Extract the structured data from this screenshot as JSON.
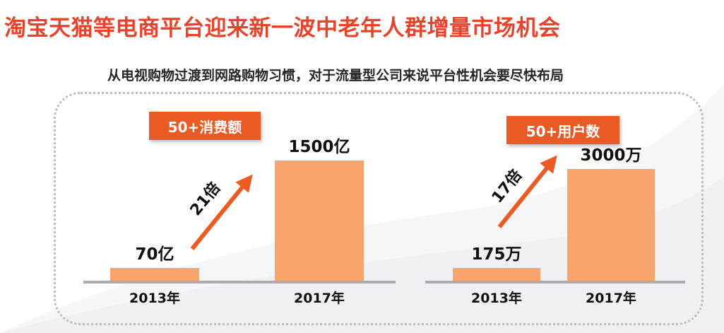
{
  "header": {
    "title": "淘宝天猫等电商平台迎来新一波中老年人群增量市场机会",
    "subtitle": "从电视购物过渡到网路购物习惯，对于流量型公司来说平台性机会要尽快布局"
  },
  "colors": {
    "title": "#e8432a",
    "bar": "#f9a46c",
    "tag": "#ea5a24",
    "arrow": "#ee5b22",
    "baseline": "#a8adb5"
  },
  "chart_data": [
    {
      "type": "bar",
      "tag": "50+消费额",
      "categories": [
        "2013年",
        "2017年"
      ],
      "values": [
        70,
        1500
      ],
      "value_labels": [
        "70亿",
        "1500亿"
      ],
      "unit": "亿",
      "growth_label": "21倍"
    },
    {
      "type": "bar",
      "tag": "50+用户数",
      "categories": [
        "2013年",
        "2017年"
      ],
      "values": [
        175,
        3000
      ],
      "value_labels": [
        "175万",
        "3000万"
      ],
      "unit": "万",
      "growth_label": "17倍"
    }
  ]
}
